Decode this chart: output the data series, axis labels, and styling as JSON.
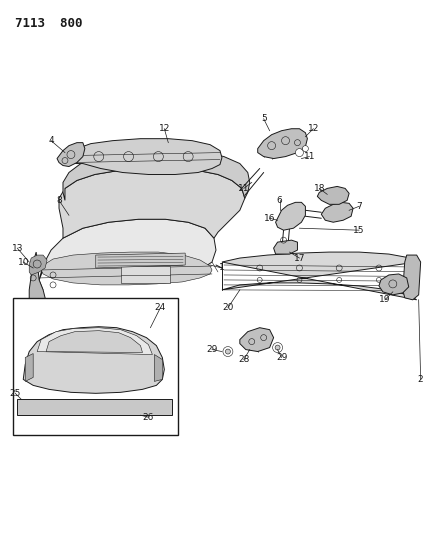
{
  "title": "7113  800",
  "bg_color": "#ffffff",
  "line_color": "#1a1a1a",
  "title_fontsize": 9,
  "label_fontsize": 6.5,
  "fig_width": 4.28,
  "fig_height": 5.33,
  "dpi": 100
}
